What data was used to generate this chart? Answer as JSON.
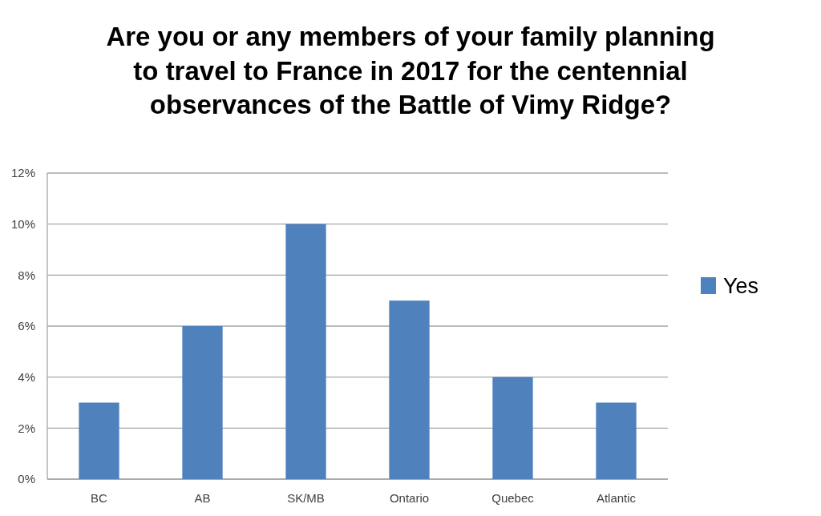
{
  "chart_data": {
    "type": "bar",
    "title": "Are you or any members of your family planning to travel to France in 2017 for the centennial observances of the Battle of Vimy Ridge?",
    "categories": [
      "BC",
      "AB",
      "SK/MB",
      "Ontario",
      "Quebec",
      "Atlantic"
    ],
    "series": [
      {
        "name": "Yes",
        "color": "#4f81bd",
        "values": [
          3,
          6,
          10,
          7,
          4,
          3
        ]
      }
    ],
    "ylim": [
      0,
      12
    ],
    "yticks": [
      {
        "value": 0,
        "label": "0%"
      },
      {
        "value": 2,
        "label": "2%"
      },
      {
        "value": 4,
        "label": "4%"
      },
      {
        "value": 6,
        "label": "6%"
      },
      {
        "value": 8,
        "label": "8%"
      },
      {
        "value": 10,
        "label": "10%"
      },
      {
        "value": 12,
        "label": "12%"
      }
    ],
    "grid": "y",
    "legend": "right"
  }
}
